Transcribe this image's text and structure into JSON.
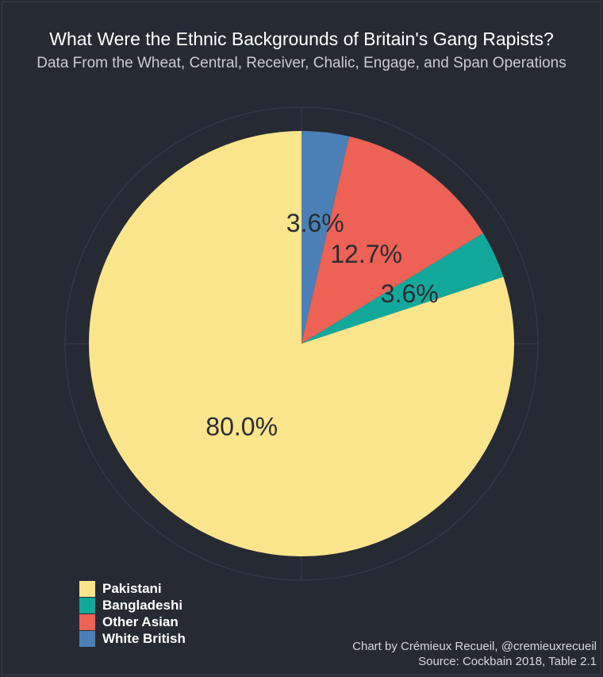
{
  "chart_data": {
    "type": "pie",
    "title": "What Were the Ethnic Backgrounds of Britain's Gang Rapists?",
    "subtitle": "Data From the Wheat, Central, Receiver, Chalic, Engage, and Span Operations",
    "slices": [
      {
        "name": "White British",
        "value": 3.6,
        "label": "3.6%",
        "color": "#4a80b6"
      },
      {
        "name": "Other Asian",
        "value": 12.7,
        "label": "12.7%",
        "color": "#ee6155"
      },
      {
        "name": "Bangladeshi",
        "value": 3.6,
        "label": "3.6%",
        "color": "#12a89b"
      },
      {
        "name": "Pakistani",
        "value": 80.0,
        "label": "80.0%",
        "color": "#fbe58c"
      }
    ],
    "legend": {
      "placement": "bottom-left",
      "entries": [
        "Pakistani",
        "Bangladeshi",
        "Other Asian",
        "White British"
      ]
    },
    "grid": true
  },
  "caption": {
    "line1": "Chart by Crémieux Recueil, @cremieuxrecueil",
    "line2": "Source: Cockbain 2018, Table 2.1"
  },
  "colors": {
    "background": "#262a33",
    "grid": "#333844",
    "label_text": "#2a2d33"
  }
}
